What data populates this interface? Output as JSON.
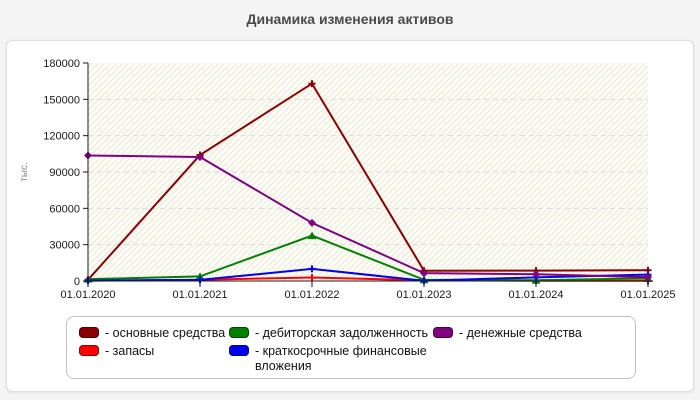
{
  "title": "Динамика изменения активов",
  "chart_data": {
    "type": "line",
    "x": [
      "01.01.2020",
      "01.01.2021",
      "01.01.2022",
      "01.01.2023",
      "01.01.2024",
      "01.01.2025"
    ],
    "ylabel": "тыс.",
    "ylim": [
      0,
      180000
    ],
    "yticks": [
      0,
      30000,
      60000,
      90000,
      120000,
      150000,
      180000
    ],
    "grid": true,
    "legend_position": "bottom",
    "series": [
      {
        "name": "основные средства",
        "color": "#8b0000",
        "marker": "plus",
        "values": [
          1000,
          104000,
          163000,
          8500,
          8600,
          8900
        ]
      },
      {
        "name": "запасы",
        "color": "#ff0000",
        "marker": "plus",
        "values": [
          300,
          1000,
          2900,
          500,
          200,
          200
        ]
      },
      {
        "name": "дебиторская задолженность",
        "color": "#008000",
        "marker": "triangle",
        "values": [
          1500,
          3800,
          37500,
          1000,
          600,
          2200
        ]
      },
      {
        "name": "краткосрочные финансовые вложения",
        "color": "#0000ee",
        "marker": "plus",
        "values": [
          300,
          900,
          10000,
          200,
          3000,
          5300
        ]
      },
      {
        "name": "денежные средства",
        "color": "#800080",
        "marker": "diamond",
        "values": [
          103600,
          102400,
          48000,
          6500,
          5600,
          3200
        ]
      }
    ]
  },
  "legend": {
    "prefix": "- ",
    "columns": [
      [
        0,
        1
      ],
      [
        2,
        3
      ],
      [
        4
      ]
    ]
  },
  "colors": {
    "title": "#4a4a4a",
    "axis": "#1a1a1a",
    "tick_label": "#1a1a1a",
    "x_tick": "#000080",
    "grid": "#dcdcdc",
    "plot_bg": "#fcfcf0",
    "hatch": "#e9e9e9",
    "ylabel": "#888888",
    "panel_bg": "#ffffff",
    "panel_border": "#dddddd",
    "legend_border": "#c2c2c2"
  }
}
